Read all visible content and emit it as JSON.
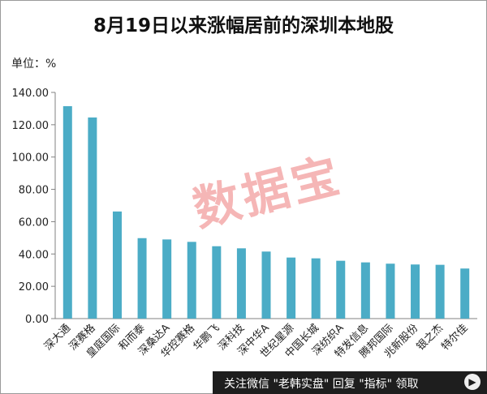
{
  "chart_data": {
    "type": "bar",
    "title": "8月19日以来涨幅居前的深圳本地股",
    "unit_label": "单位：%",
    "categories": [
      "深大通",
      "深赛格",
      "皇庭国际",
      "和而泰",
      "深桑达A",
      "华控赛格",
      "华鹏飞",
      "深科技",
      "深中华A",
      "世纪星源",
      "中国长城",
      "深纺织A",
      "特发信息",
      "腾邦国际",
      "兆新股份",
      "银之杰",
      "特尔佳"
    ],
    "values": [
      131.5,
      124.5,
      66.3,
      49.8,
      49.0,
      47.5,
      44.8,
      43.5,
      41.5,
      37.8,
      37.3,
      35.8,
      34.8,
      34.0,
      33.5,
      33.3,
      31.0
    ],
    "ylim": [
      0,
      140
    ],
    "yticks": [
      "0.00",
      "20.00",
      "40.00",
      "60.00",
      "80.00",
      "100.00",
      "120.00",
      "140.00"
    ],
    "bar_color": "#4bacc6",
    "grid": false
  },
  "watermark": "数据宝",
  "footer": {
    "text": "关注微信 \"老韩实盘\" 回复 \"指标\" 领取",
    "icon": "play-icon"
  }
}
